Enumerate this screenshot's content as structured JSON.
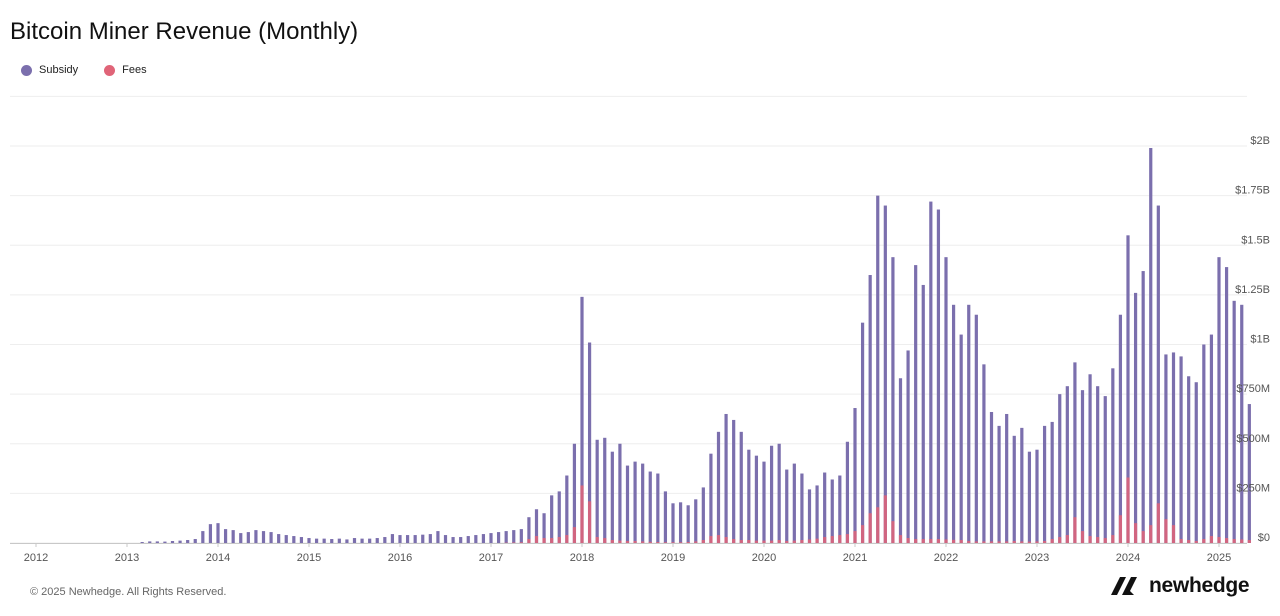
{
  "chart_data": {
    "type": "bar",
    "title": "Bitcoin Miner Revenue (Monthly)",
    "xlabel": "",
    "ylabel": "",
    "stacked": false,
    "x_ticks": [
      "2012",
      "2013",
      "2014",
      "2015",
      "2016",
      "2017",
      "2018",
      "2019",
      "2020",
      "2021",
      "2022",
      "2023",
      "2024",
      "2025"
    ],
    "y_ticks": [
      "$0",
      "$250M",
      "$500M",
      "$750M",
      "$1B",
      "$1.25B",
      "$1.5B",
      "$1.75B",
      "$2B"
    ],
    "ylim": [
      0,
      2000
    ],
    "y_units": "millions USD",
    "grid": true,
    "legend_position": "top-left",
    "x_start": "2013-03",
    "x_interval": "monthly",
    "series": [
      {
        "name": "Subsidy",
        "color": "#7b6fad",
        "values": [
          5,
          8,
          8,
          7,
          10,
          12,
          15,
          20,
          60,
          95,
          100,
          70,
          65,
          50,
          55,
          65,
          60,
          55,
          45,
          40,
          35,
          30,
          25,
          22,
          22,
          20,
          22,
          18,
          25,
          22,
          22,
          25,
          30,
          45,
          40,
          40,
          40,
          42,
          45,
          60,
          40,
          30,
          30,
          35,
          40,
          45,
          50,
          55,
          60,
          65,
          70,
          130,
          170,
          150,
          240,
          260,
          340,
          500,
          1240,
          1010,
          520,
          530,
          460,
          500,
          390,
          410,
          400,
          360,
          350,
          260,
          200,
          205,
          190,
          220,
          280,
          450,
          560,
          650,
          620,
          560,
          470,
          440,
          410,
          490,
          500,
          370,
          400,
          350,
          270,
          290,
          355,
          320,
          340,
          510,
          680,
          1110,
          1350,
          1750,
          1700,
          1440,
          830,
          970,
          1400,
          1300,
          1720,
          1680,
          1440,
          1200,
          1050,
          1200,
          1150,
          900,
          660,
          590,
          650,
          540,
          580,
          460,
          470,
          590,
          610,
          750,
          790,
          910,
          770,
          850,
          790,
          740,
          880,
          1150,
          1550,
          1260,
          1370,
          1990,
          1700,
          950,
          960,
          940,
          840,
          810,
          1000,
          1050,
          1440,
          1390,
          1220,
          1200,
          700
        ]
      },
      {
        "name": "Fees",
        "color": "#e06478",
        "values": [
          0,
          0,
          0,
          0,
          0,
          0,
          0,
          0,
          0,
          0,
          0,
          0,
          0,
          0,
          0,
          0,
          0,
          0,
          0,
          0,
          0,
          0,
          0,
          0,
          0,
          0,
          0,
          0,
          0,
          0,
          0,
          0,
          0,
          0,
          0,
          0,
          0,
          0,
          0,
          0,
          0,
          0,
          0,
          0,
          0,
          0,
          0,
          0,
          2,
          3,
          4,
          20,
          35,
          25,
          25,
          30,
          40,
          80,
          290,
          210,
          30,
          25,
          15,
          12,
          10,
          10,
          8,
          6,
          5,
          4,
          4,
          4,
          5,
          8,
          15,
          35,
          40,
          30,
          20,
          15,
          15,
          12,
          12,
          12,
          15,
          10,
          12,
          15,
          18,
          22,
          30,
          35,
          40,
          45,
          60,
          90,
          150,
          180,
          240,
          110,
          40,
          25,
          20,
          20,
          20,
          20,
          18,
          16,
          15,
          10,
          8,
          8,
          8,
          8,
          8,
          10,
          8,
          7,
          8,
          10,
          20,
          30,
          40,
          130,
          60,
          35,
          30,
          25,
          40,
          140,
          330,
          100,
          60,
          90,
          200,
          120,
          90,
          20,
          15,
          10,
          20,
          35,
          30,
          25,
          20,
          18,
          15
        ]
      }
    ]
  },
  "legend": [
    {
      "label": "Subsidy",
      "color": "#7b6fad"
    },
    {
      "label": "Fees",
      "color": "#e06478"
    }
  ],
  "footer": {
    "copyright": "© 2025 Newhedge. All Rights Reserved.",
    "brand": "newhedge"
  }
}
